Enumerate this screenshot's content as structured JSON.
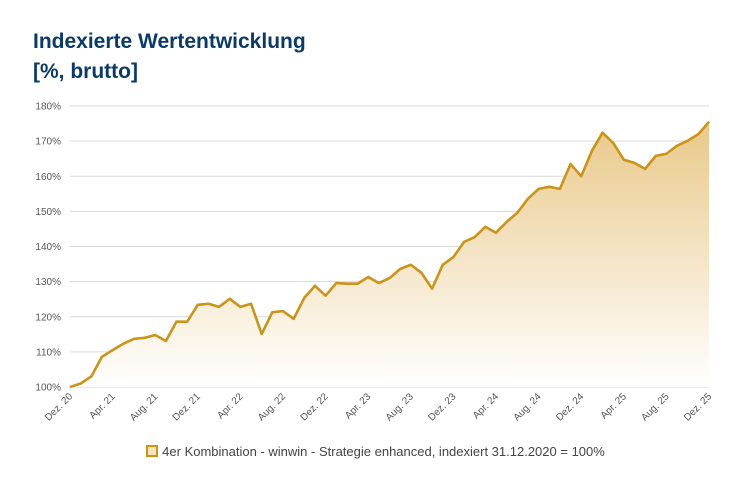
{
  "title_line1": "Indexierte Wertentwicklung",
  "title_line2": "[%, brutto]",
  "chart_data": {
    "type": "area",
    "title": "Indexierte Wertentwicklung [%, brutto]",
    "series": [
      {
        "name": "4er Kombination - winwin - Strategie enhanced, indexiert 31.12.2020 = 100%",
        "values": [
          100,
          101,
          103,
          108.6,
          110.5,
          112.3,
          113.7,
          114,
          114.8,
          113.1,
          118.6,
          118.6,
          123.4,
          123.7,
          122.8,
          125.1,
          122.8,
          123.7,
          115.1,
          121.3,
          121.6,
          119.4,
          125.4,
          128.8,
          126,
          129.6,
          129.4,
          129.4,
          131.3,
          129.6,
          131,
          133.6,
          134.8,
          132.5,
          128,
          134.8,
          137,
          141.3,
          142.7,
          145.6,
          143.9,
          147,
          149.6,
          153.6,
          156.4,
          157,
          156.4,
          163.5,
          160,
          167.2,
          172.4,
          169.5,
          164.7,
          163.8,
          162.1,
          165.8,
          166.4,
          168.7,
          170.1,
          172,
          175.5
        ]
      }
    ],
    "x_start": "Dez. 20",
    "x_end": "Dez. 25",
    "x_frequency": "monthly",
    "x_tick_labels": [
      "Dez. 20",
      "Apr. 21",
      "Aug. 21",
      "Dez. 21",
      "Apr. 22",
      "Aug. 22",
      "Dez. 22",
      "Apr. 23",
      "Aug. 23",
      "Dez. 23",
      "Apr. 24",
      "Aug. 24",
      "Dez. 24",
      "Apr. 25",
      "Aug. 25",
      "Dez. 25"
    ],
    "y_ticks": [
      100,
      110,
      120,
      130,
      140,
      150,
      160,
      170,
      180
    ],
    "y_tick_labels": [
      "100%",
      "110%",
      "120%",
      "130%",
      "140%",
      "150%",
      "160%",
      "170%",
      "180%"
    ],
    "ylim": [
      100,
      180
    ],
    "grid": "horizontal",
    "legend_placement": "bottom",
    "colors": {
      "line": "#c99417",
      "fill_top": "#e9c98a",
      "fill_bottom": "#ffffff",
      "grid": "#d9d9d9",
      "title": "#0b3a66"
    }
  }
}
